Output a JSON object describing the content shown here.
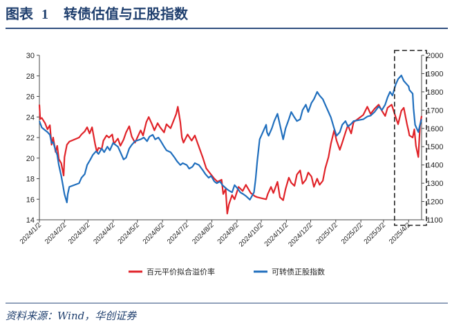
{
  "figure": {
    "label": "图表",
    "number": "1",
    "title": "转债估值与正股指数",
    "source": "资料来源：Wind，华创证券"
  },
  "chart_data": {
    "type": "line",
    "xlabel": "",
    "ylabel": "",
    "x_ticks": [
      "2024/1/2",
      "2024/2/2",
      "2024/3/2",
      "2024/4/2",
      "2024/5/2",
      "2024/6/2",
      "2024/7/2",
      "2024/8/2",
      "2024/9/2",
      "2024/10/2",
      "2024/11/2",
      "2024/12/2",
      "2025/1/2",
      "2025/2/2",
      "2025/3/2",
      "2025/4/2"
    ],
    "y_left": {
      "ylim": [
        14,
        30
      ],
      "ticks": [
        14,
        16,
        18,
        20,
        22,
        24,
        26,
        28,
        30
      ]
    },
    "y_right": {
      "ylim": [
        1100,
        2000
      ],
      "ticks": [
        1100,
        1200,
        1300,
        1400,
        1500,
        1600,
        1700,
        1800,
        1900,
        2000
      ]
    },
    "legend_position": "bottom",
    "grid": false,
    "highlight_box": {
      "from": "2025/3/19",
      "to": "2025/4/18",
      "style": "dashed"
    },
    "series": [
      {
        "name": "百元平价拟合溢价率",
        "axis": "left",
        "color": "#e02228",
        "points": [
          [
            "2024/1/2",
            25.2
          ],
          [
            "2024/1/3",
            23.8
          ],
          [
            "2024/1/5",
            23.9
          ],
          [
            "2024/1/9",
            23.4
          ],
          [
            "2024/1/12",
            22.8
          ],
          [
            "2024/1/15",
            23.2
          ],
          [
            "2024/1/17",
            21.3
          ],
          [
            "2024/1/19",
            22.0
          ],
          [
            "2024/1/22",
            20.6
          ],
          [
            "2024/1/24",
            21.2
          ],
          [
            "2024/1/26",
            19.9
          ],
          [
            "2024/1/29",
            19.5
          ],
          [
            "2024/2/1",
            18.3
          ],
          [
            "2024/2/2",
            20.1
          ],
          [
            "2024/2/5",
            21.3
          ],
          [
            "2024/2/8",
            21.6
          ],
          [
            "2024/2/20",
            22.0
          ],
          [
            "2024/2/23",
            22.3
          ],
          [
            "2024/2/27",
            22.6
          ],
          [
            "2024/3/1",
            23.0
          ],
          [
            "2024/3/4",
            22.4
          ],
          [
            "2024/3/7",
            23.0
          ],
          [
            "2024/3/11",
            21.3
          ],
          [
            "2024/3/13",
            20.6
          ],
          [
            "2024/3/15",
            21.0
          ],
          [
            "2024/3/19",
            20.9
          ],
          [
            "2024/3/21",
            21.7
          ],
          [
            "2024/3/25",
            22.2
          ],
          [
            "2024/3/28",
            22.0
          ],
          [
            "2024/4/1",
            22.3
          ],
          [
            "2024/4/3",
            21.4
          ],
          [
            "2024/4/8",
            21.9
          ],
          [
            "2024/4/11",
            21.2
          ],
          [
            "2024/4/15",
            21.8
          ],
          [
            "2024/4/18",
            22.5
          ],
          [
            "2024/4/22",
            23.1
          ],
          [
            "2024/4/25",
            22.1
          ],
          [
            "2024/4/29",
            21.5
          ],
          [
            "2024/5/6",
            22.7
          ],
          [
            "2024/5/9",
            22.2
          ],
          [
            "2024/5/13",
            23.5
          ],
          [
            "2024/5/16",
            24.0
          ],
          [
            "2024/5/20",
            23.3
          ],
          [
            "2024/5/23",
            22.7
          ],
          [
            "2024/5/27",
            23.4
          ],
          [
            "2024/5/30",
            23.0
          ],
          [
            "2024/6/4",
            22.5
          ],
          [
            "2024/6/7",
            23.3
          ],
          [
            "2024/6/12",
            22.9
          ],
          [
            "2024/6/17",
            23.9
          ],
          [
            "2024/6/19",
            24.3
          ],
          [
            "2024/6/21",
            25.0
          ],
          [
            "2024/6/24",
            23.5
          ],
          [
            "2024/6/26",
            22.0
          ],
          [
            "2024/6/28",
            21.5
          ],
          [
            "2024/7/3",
            22.3
          ],
          [
            "2024/7/8",
            21.7
          ],
          [
            "2024/7/12",
            22.2
          ],
          [
            "2024/7/17",
            21.1
          ],
          [
            "2024/7/22",
            20.0
          ],
          [
            "2024/7/26",
            19.0
          ],
          [
            "2024/7/31",
            18.5
          ],
          [
            "2024/8/5",
            18.0
          ],
          [
            "2024/8/9",
            17.7
          ],
          [
            "2024/8/14",
            17.9
          ],
          [
            "2024/8/16",
            16.5
          ],
          [
            "2024/8/19",
            17.0
          ],
          [
            "2024/8/21",
            14.6
          ],
          [
            "2024/8/23",
            15.5
          ],
          [
            "2024/8/27",
            16.4
          ],
          [
            "2024/8/30",
            16.0
          ],
          [
            "2024/9/4",
            17.2
          ],
          [
            "2024/9/9",
            16.8
          ],
          [
            "2024/9/13",
            17.4
          ],
          [
            "2024/9/19",
            16.6
          ],
          [
            "2024/9/24",
            16.3
          ],
          [
            "2024/9/27",
            16.2
          ],
          [
            "2024/10/8",
            16.0
          ],
          [
            "2024/10/10",
            16.5
          ],
          [
            "2024/10/14",
            17.2
          ],
          [
            "2024/10/17",
            16.6
          ],
          [
            "2024/10/22",
            17.7
          ],
          [
            "2024/10/25",
            16.2
          ],
          [
            "2024/10/29",
            15.9
          ],
          [
            "2024/11/1",
            17.0
          ],
          [
            "2024/11/5",
            18.1
          ],
          [
            "2024/11/8",
            17.6
          ],
          [
            "2024/11/12",
            17.3
          ],
          [
            "2024/11/15",
            18.4
          ],
          [
            "2024/11/19",
            18.8
          ],
          [
            "2024/11/22",
            17.5
          ],
          [
            "2024/11/26",
            17.9
          ],
          [
            "2024/11/29",
            18.6
          ],
          [
            "2024/12/3",
            18.2
          ],
          [
            "2024/12/6",
            17.2
          ],
          [
            "2024/12/10",
            18.0
          ],
          [
            "2024/12/13",
            17.4
          ],
          [
            "2024/12/17",
            17.8
          ],
          [
            "2024/12/20",
            19.0
          ],
          [
            "2024/12/24",
            20.1
          ],
          [
            "2024/12/27",
            21.4
          ],
          [
            "2024/12/31",
            22.7
          ],
          [
            "2025/1/3",
            21.7
          ],
          [
            "2025/1/7",
            20.8
          ],
          [
            "2025/1/10",
            21.5
          ],
          [
            "2025/1/14",
            22.5
          ],
          [
            "2025/1/17",
            23.2
          ],
          [
            "2025/1/21",
            22.4
          ],
          [
            "2025/1/24",
            23.5
          ],
          [
            "2025/2/5",
            24.2
          ],
          [
            "2025/2/10",
            25.0
          ],
          [
            "2025/2/14",
            24.3
          ],
          [
            "2025/2/19",
            24.8
          ],
          [
            "2025/2/24",
            25.2
          ],
          [
            "2025/2/28",
            24.6
          ],
          [
            "2025/3/4",
            24.1
          ],
          [
            "2025/3/7",
            24.9
          ],
          [
            "2025/3/12",
            25.2
          ],
          [
            "2025/3/17",
            24.0
          ],
          [
            "2025/3/20",
            23.3
          ],
          [
            "2025/3/24",
            24.6
          ],
          [
            "2025/3/27",
            24.9
          ],
          [
            "2025/3/31",
            23.3
          ],
          [
            "2025/4/2",
            22.6
          ],
          [
            "2025/4/3",
            22.2
          ],
          [
            "2025/4/7",
            22.0
          ],
          [
            "2025/4/9",
            22.8
          ],
          [
            "2025/4/11",
            21.2
          ],
          [
            "2025/4/14",
            20.1
          ],
          [
            "2025/4/16",
            23.1
          ],
          [
            "2025/4/18",
            24.1
          ]
        ]
      },
      {
        "name": "可转债正股指数",
        "axis": "right",
        "color": "#1f6ebd",
        "points": [
          [
            "2024/1/2",
            1640
          ],
          [
            "2024/1/5",
            1605
          ],
          [
            "2024/1/9",
            1590
          ],
          [
            "2024/1/12",
            1580
          ],
          [
            "2024/1/15",
            1565
          ],
          [
            "2024/1/17",
            1520
          ],
          [
            "2024/1/19",
            1525
          ],
          [
            "2024/1/22",
            1480
          ],
          [
            "2024/1/24",
            1455
          ],
          [
            "2024/1/26",
            1400
          ],
          [
            "2024/1/29",
            1340
          ],
          [
            "2024/1/31",
            1290
          ],
          [
            "2024/2/2",
            1240
          ],
          [
            "2024/2/5",
            1195
          ],
          [
            "2024/2/6",
            1240
          ],
          [
            "2024/2/8",
            1280
          ],
          [
            "2024/2/20",
            1300
          ],
          [
            "2024/2/23",
            1330
          ],
          [
            "2024/2/27",
            1350
          ],
          [
            "2024/3/1",
            1400
          ],
          [
            "2024/3/5",
            1430
          ],
          [
            "2024/3/8",
            1455
          ],
          [
            "2024/3/12",
            1475
          ],
          [
            "2024/3/15",
            1460
          ],
          [
            "2024/3/19",
            1490
          ],
          [
            "2024/3/22",
            1470
          ],
          [
            "2024/3/26",
            1500
          ],
          [
            "2024/3/29",
            1480
          ],
          [
            "2024/4/2",
            1520
          ],
          [
            "2024/4/8",
            1500
          ],
          [
            "2024/4/11",
            1470
          ],
          [
            "2024/4/15",
            1430
          ],
          [
            "2024/4/18",
            1440
          ],
          [
            "2024/4/22",
            1490
          ],
          [
            "2024/4/25",
            1510
          ],
          [
            "2024/4/29",
            1530
          ],
          [
            "2024/5/6",
            1540
          ],
          [
            "2024/5/10",
            1550
          ],
          [
            "2024/5/14",
            1530
          ],
          [
            "2024/5/17",
            1555
          ],
          [
            "2024/5/21",
            1565
          ],
          [
            "2024/5/24",
            1540
          ],
          [
            "2024/5/28",
            1550
          ],
          [
            "2024/5/31",
            1530
          ],
          [
            "2024/6/4",
            1500
          ],
          [
            "2024/6/7",
            1480
          ],
          [
            "2024/6/12",
            1470
          ],
          [
            "2024/6/17",
            1440
          ],
          [
            "2024/6/20",
            1420
          ],
          [
            "2024/6/24",
            1400
          ],
          [
            "2024/6/27",
            1410
          ],
          [
            "2024/7/2",
            1400
          ],
          [
            "2024/7/5",
            1380
          ],
          [
            "2024/7/9",
            1390
          ],
          [
            "2024/7/12",
            1410
          ],
          [
            "2024/7/17",
            1400
          ],
          [
            "2024/7/22",
            1370
          ],
          [
            "2024/7/25",
            1350
          ],
          [
            "2024/7/29",
            1330
          ],
          [
            "2024/8/1",
            1340
          ],
          [
            "2024/8/5",
            1310
          ],
          [
            "2024/8/8",
            1300
          ],
          [
            "2024/8/12",
            1310
          ],
          [
            "2024/8/15",
            1290
          ],
          [
            "2024/8/20",
            1270
          ],
          [
            "2024/8/23",
            1260
          ],
          [
            "2024/8/27",
            1250
          ],
          [
            "2024/8/30",
            1290
          ],
          [
            "2024/9/3",
            1270
          ],
          [
            "2024/9/6",
            1250
          ],
          [
            "2024/9/10",
            1240
          ],
          [
            "2024/9/13",
            1230
          ],
          [
            "2024/9/18",
            1210
          ],
          [
            "2024/9/23",
            1250
          ],
          [
            "2024/9/25",
            1320
          ],
          [
            "2024/9/27",
            1420
          ],
          [
            "2024/9/30",
            1540
          ],
          [
            "2024/10/8",
            1620
          ],
          [
            "2024/10/9",
            1580
          ],
          [
            "2024/10/11",
            1560
          ],
          [
            "2024/10/15",
            1600
          ],
          [
            "2024/10/18",
            1640
          ],
          [
            "2024/10/22",
            1680
          ],
          [
            "2024/10/25",
            1620
          ],
          [
            "2024/10/29",
            1540
          ],
          [
            "2024/11/1",
            1600
          ],
          [
            "2024/11/5",
            1650
          ],
          [
            "2024/11/8",
            1690
          ],
          [
            "2024/11/12",
            1660
          ],
          [
            "2024/11/15",
            1640
          ],
          [
            "2024/11/19",
            1650
          ],
          [
            "2024/11/22",
            1700
          ],
          [
            "2024/11/26",
            1730
          ],
          [
            "2024/11/29",
            1690
          ],
          [
            "2024/12/3",
            1740
          ],
          [
            "2024/12/6",
            1760
          ],
          [
            "2024/12/10",
            1800
          ],
          [
            "2024/12/13",
            1780
          ],
          [
            "2024/12/17",
            1760
          ],
          [
            "2024/12/20",
            1730
          ],
          [
            "2024/12/24",
            1690
          ],
          [
            "2024/12/27",
            1660
          ],
          [
            "2024/12/31",
            1600
          ],
          [
            "2025/1/3",
            1560
          ],
          [
            "2025/1/7",
            1580
          ],
          [
            "2025/1/10",
            1620
          ],
          [
            "2025/1/14",
            1640
          ],
          [
            "2025/1/17",
            1610
          ],
          [
            "2025/1/21",
            1625
          ],
          [
            "2025/1/24",
            1640
          ],
          [
            "2025/2/5",
            1650
          ],
          [
            "2025/2/10",
            1665
          ],
          [
            "2025/2/14",
            1670
          ],
          [
            "2025/2/19",
            1690
          ],
          [
            "2025/2/24",
            1720
          ],
          [
            "2025/2/28",
            1700
          ],
          [
            "2025/3/4",
            1730
          ],
          [
            "2025/3/7",
            1770
          ],
          [
            "2025/3/10",
            1800
          ],
          [
            "2025/3/13",
            1780
          ],
          [
            "2025/3/17",
            1840
          ],
          [
            "2025/3/20",
            1870
          ],
          [
            "2025/3/24",
            1890
          ],
          [
            "2025/3/27",
            1860
          ],
          [
            "2025/3/31",
            1840
          ],
          [
            "2025/4/2",
            1830
          ],
          [
            "2025/4/3",
            1810
          ],
          [
            "2025/4/7",
            1790
          ],
          [
            "2025/4/8",
            1710
          ],
          [
            "2025/4/10",
            1620
          ],
          [
            "2025/4/14",
            1580
          ],
          [
            "2025/4/16",
            1620
          ],
          [
            "2025/4/18",
            1650
          ]
        ]
      }
    ]
  }
}
